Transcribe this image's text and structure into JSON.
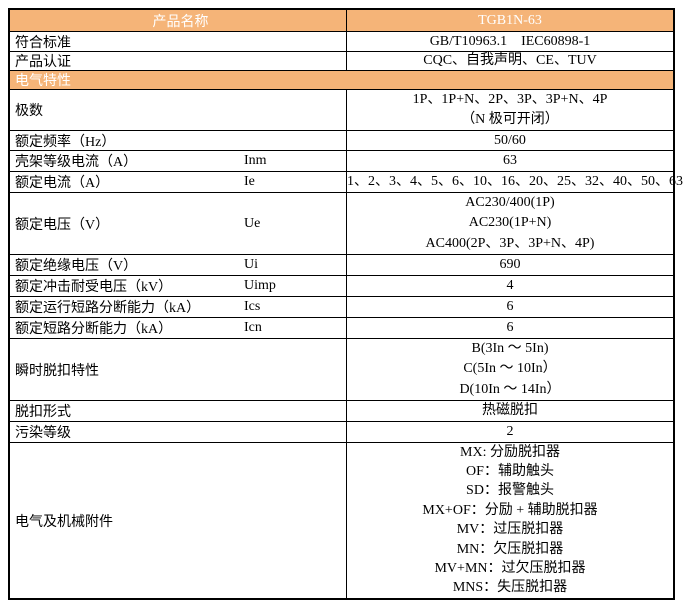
{
  "table": {
    "colors": {
      "accent": "#f5b478",
      "border": "#000000",
      "text": "#000000",
      "header_text": "#ffffff"
    },
    "header": {
      "product_name_label": "产品名称",
      "model": "TGB1N-63"
    },
    "section_header": "电气特性",
    "rows": [
      {
        "label": "符合标准",
        "symbol": "",
        "lines": [
          "GB/T10963.1    IEC60898-1"
        ]
      },
      {
        "label": "产品认证",
        "symbol": "",
        "lines": [
          "CQC、自我声明、CE、TUV"
        ]
      },
      {
        "label": "极数",
        "symbol": "",
        "lines": [
          "1P、1P+N、2P、3P、3P+N、4P",
          "（N 极可开闭）"
        ]
      },
      {
        "label": "额定频率（Hz）",
        "symbol": "",
        "lines": [
          "50/60"
        ]
      },
      {
        "label": "壳架等级电流（A）",
        "symbol": "Inm",
        "lines": [
          "63"
        ]
      },
      {
        "label": "额定电流（A）",
        "symbol": "Ie",
        "lines": [
          "1、2、3、4、5、6、10、16、20、25、32、40、50、63"
        ]
      },
      {
        "label": "额定电压（V）",
        "symbol": "Ue",
        "lines": [
          "AC230/400(1P)",
          "AC230(1P+N)",
          "AC400(2P、3P、3P+N、4P)"
        ]
      },
      {
        "label": "额定绝缘电压（V）",
        "symbol": "Ui",
        "lines": [
          "690"
        ]
      },
      {
        "label": "额定冲击耐受电压（kV）",
        "symbol": "Uimp",
        "lines": [
          "4"
        ]
      },
      {
        "label": "额定运行短路分断能力（kA）",
        "symbol": "Ics",
        "lines": [
          "6"
        ]
      },
      {
        "label": "额定短路分断能力（kA）",
        "symbol": "Icn",
        "lines": [
          "6"
        ]
      },
      {
        "label": "瞬时脱扣特性",
        "symbol": "",
        "lines": [
          "B(3In ～ 5In)",
          "C(5In ～ 10In）",
          "D(10In ～ 14In）"
        ]
      },
      {
        "label": "脱扣形式",
        "symbol": "",
        "lines": [
          "热磁脱扣"
        ]
      },
      {
        "label": "污染等级",
        "symbol": "",
        "lines": [
          "2"
        ]
      },
      {
        "label": "电气及机械附件",
        "symbol": "",
        "lines": [
          "MX: 分励脱扣器",
          "OF：辅助触头",
          "SD：报警触头",
          "MX+OF：分励 + 辅助脱扣器",
          "MV：过压脱扣器",
          "MN：欠压脱扣器",
          "MV+MN：过欠压脱扣器",
          "MNS：失压脱扣器"
        ]
      }
    ]
  }
}
